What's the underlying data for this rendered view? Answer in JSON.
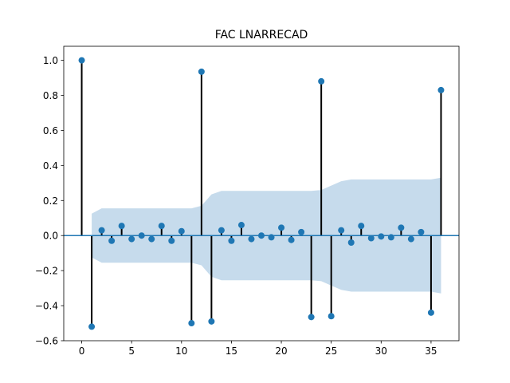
{
  "chart_data": {
    "type": "stem",
    "title": "FAC LNARRECAD",
    "xlabel": "",
    "ylabel": "",
    "xlim": [
      -1.8,
      37.8
    ],
    "ylim": [
      -0.6,
      1.08
    ],
    "x_ticks": [
      0,
      5,
      10,
      15,
      20,
      25,
      30,
      35
    ],
    "x_tick_labels": [
      "0",
      "5",
      "10",
      "15",
      "20",
      "25",
      "30",
      "35"
    ],
    "y_ticks": [
      -0.6,
      -0.4,
      -0.2,
      0.0,
      0.2,
      0.4,
      0.6,
      0.8,
      1.0
    ],
    "y_tick_labels": [
      "−0.6",
      "−0.4",
      "−0.2",
      "0.0",
      "0.2",
      "0.4",
      "0.6",
      "0.8",
      "1.0"
    ],
    "grid": false,
    "series": [
      {
        "lags": [
          0,
          1,
          2,
          3,
          4,
          5,
          6,
          7,
          8,
          9,
          10,
          11,
          12,
          13,
          14,
          15,
          16,
          17,
          18,
          19,
          20,
          21,
          22,
          23,
          24,
          25,
          26,
          27,
          28,
          29,
          30,
          31,
          32,
          33,
          34,
          35,
          36
        ],
        "values": [
          1.0,
          -0.52,
          0.03,
          -0.03,
          0.055,
          -0.02,
          0.0,
          -0.02,
          0.055,
          -0.03,
          0.025,
          -0.5,
          0.935,
          -0.49,
          0.03,
          -0.03,
          0.06,
          -0.02,
          0.0,
          -0.01,
          0.045,
          -0.025,
          0.02,
          -0.465,
          0.88,
          -0.46,
          0.03,
          -0.04,
          0.055,
          -0.015,
          -0.005,
          -0.01,
          0.045,
          -0.02,
          0.02,
          -0.44,
          0.83
        ]
      }
    ],
    "confidence_band": {
      "lags": [
        1,
        2,
        3,
        4,
        5,
        6,
        7,
        8,
        9,
        10,
        11,
        12,
        13,
        14,
        15,
        16,
        17,
        18,
        19,
        20,
        21,
        22,
        23,
        24,
        25,
        26,
        27,
        28,
        29,
        30,
        31,
        32,
        33,
        34,
        35,
        36
      ],
      "upper": [
        0.125,
        0.155,
        0.155,
        0.155,
        0.155,
        0.155,
        0.155,
        0.155,
        0.155,
        0.155,
        0.155,
        0.17,
        0.235,
        0.255,
        0.255,
        0.255,
        0.255,
        0.255,
        0.255,
        0.255,
        0.255,
        0.255,
        0.255,
        0.26,
        0.285,
        0.31,
        0.32,
        0.32,
        0.32,
        0.32,
        0.32,
        0.32,
        0.32,
        0.32,
        0.32,
        0.33
      ]
    },
    "colors": {
      "marker": "#1f77b4",
      "stem": "#000000",
      "zero_line": "#1f77b4",
      "band": "#c6dbec"
    }
  }
}
